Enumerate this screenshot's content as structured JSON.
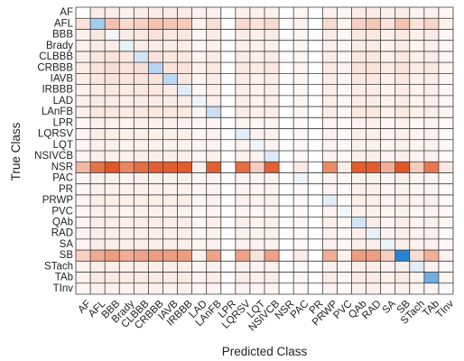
{
  "chart_data": {
    "type": "heatmap",
    "title": "",
    "xlabel": "Predicted Class",
    "ylabel": "True Class",
    "classes": [
      "AF",
      "AFL",
      "BBB",
      "Brady",
      "CLBBB",
      "CRBBB",
      "IAVB",
      "IRBBB",
      "LAD",
      "LAnFB",
      "LPR",
      "LQRSV",
      "LQT",
      "NSIVCB",
      "NSR",
      "PAC",
      "PR",
      "PRWP",
      "PVC",
      "QAb",
      "RAD",
      "SA",
      "SB",
      "STach",
      "TAb",
      "TInv"
    ],
    "colormap": {
      "negative_color": "#e0501e",
      "positive_color": "#1f7fd1",
      "neutral_color": "#ffffff",
      "range": [
        -0.75,
        0.75
      ]
    },
    "grid": true,
    "grid_color": "#3a3a3a",
    "rows": [
      {
        "true_class": "AF",
        "values": [
          0,
          -0.08,
          -0.08,
          -0.06,
          -0.08,
          -0.08,
          -0.08,
          -0.08,
          -0.06,
          -0.06,
          0,
          -0.06,
          -0.06,
          -0.06,
          0,
          -0.04,
          0,
          -0.06,
          -0.04,
          -0.08,
          -0.08,
          -0.06,
          -0.08,
          -0.05,
          -0.06,
          -0.04
        ]
      },
      {
        "true_class": "AFL",
        "values": [
          -0.12,
          0.3,
          -0.26,
          -0.16,
          -0.2,
          -0.26,
          -0.24,
          -0.22,
          -0.06,
          -0.14,
          0,
          -0.16,
          -0.12,
          -0.16,
          0,
          -0.06,
          0,
          -0.16,
          -0.05,
          -0.2,
          -0.24,
          -0.12,
          -0.26,
          -0.12,
          -0.18,
          -0.06
        ]
      },
      {
        "true_class": "BBB",
        "values": [
          -0.06,
          -0.1,
          0.05,
          -0.08,
          -0.1,
          -0.12,
          -0.1,
          -0.1,
          -0.04,
          -0.08,
          0,
          -0.08,
          -0.06,
          -0.08,
          0,
          -0.04,
          0,
          -0.08,
          -0.04,
          -0.1,
          -0.1,
          -0.06,
          -0.1,
          -0.06,
          -0.08,
          -0.04
        ]
      },
      {
        "true_class": "Brady",
        "values": [
          -0.06,
          -0.08,
          -0.08,
          0.08,
          -0.08,
          -0.08,
          -0.08,
          -0.08,
          -0.04,
          -0.06,
          0,
          -0.06,
          -0.06,
          -0.06,
          0,
          -0.04,
          0,
          -0.06,
          -0.04,
          -0.08,
          -0.08,
          -0.05,
          -0.08,
          -0.05,
          -0.06,
          -0.04
        ]
      },
      {
        "true_class": "CLBBB",
        "values": [
          -0.07,
          -0.1,
          -0.12,
          -0.1,
          0.15,
          -0.12,
          -0.1,
          -0.1,
          -0.05,
          -0.08,
          0,
          -0.08,
          -0.06,
          -0.08,
          0,
          -0.04,
          0,
          -0.08,
          -0.04,
          -0.1,
          -0.1,
          -0.06,
          -0.1,
          -0.06,
          -0.08,
          -0.04
        ]
      },
      {
        "true_class": "CRBBB",
        "values": [
          -0.08,
          -0.12,
          -0.14,
          -0.12,
          -0.14,
          0.25,
          -0.12,
          -0.12,
          -0.06,
          -0.1,
          0,
          -0.1,
          -0.08,
          -0.1,
          0,
          -0.05,
          0,
          -0.1,
          -0.05,
          -0.12,
          -0.12,
          -0.08,
          -0.12,
          -0.08,
          -0.1,
          -0.05
        ]
      },
      {
        "true_class": "IAVB",
        "values": [
          -0.07,
          -0.1,
          -0.12,
          -0.1,
          -0.12,
          -0.12,
          0.22,
          -0.1,
          -0.05,
          -0.08,
          0,
          -0.08,
          -0.06,
          -0.08,
          0,
          -0.04,
          0,
          -0.08,
          -0.04,
          -0.1,
          -0.1,
          -0.06,
          -0.1,
          -0.06,
          -0.08,
          -0.04
        ]
      },
      {
        "true_class": "IRBBB",
        "values": [
          -0.06,
          -0.08,
          -0.1,
          -0.08,
          -0.1,
          -0.1,
          -0.08,
          0.1,
          -0.04,
          -0.07,
          0,
          -0.07,
          -0.05,
          -0.07,
          0,
          -0.04,
          0,
          -0.07,
          -0.04,
          -0.08,
          -0.08,
          -0.05,
          -0.08,
          -0.05,
          -0.07,
          -0.04
        ]
      },
      {
        "true_class": "LAD",
        "values": [
          -0.06,
          -0.08,
          -0.08,
          -0.07,
          -0.08,
          -0.08,
          -0.08,
          -0.08,
          0.06,
          -0.07,
          0,
          -0.07,
          -0.05,
          -0.07,
          0,
          -0.04,
          0,
          -0.07,
          -0.04,
          -0.08,
          -0.08,
          -0.05,
          -0.08,
          -0.05,
          -0.07,
          -0.04
        ]
      },
      {
        "true_class": "LAnFB",
        "values": [
          -0.07,
          -0.1,
          -0.1,
          -0.08,
          -0.1,
          -0.1,
          -0.1,
          -0.1,
          -0.05,
          0.18,
          0,
          -0.08,
          -0.06,
          -0.08,
          0,
          -0.04,
          0,
          -0.08,
          -0.04,
          -0.1,
          -0.1,
          -0.06,
          -0.1,
          -0.06,
          -0.08,
          -0.04
        ]
      },
      {
        "true_class": "LPR",
        "values": [
          -0.04,
          -0.06,
          -0.06,
          -0.05,
          -0.06,
          -0.06,
          -0.06,
          -0.06,
          -0.04,
          -0.05,
          0,
          -0.05,
          -0.04,
          -0.05,
          0,
          -0.03,
          0,
          -0.05,
          -0.03,
          -0.06,
          -0.06,
          -0.04,
          -0.06,
          -0.04,
          -0.05,
          -0.03
        ]
      },
      {
        "true_class": "LQRSV",
        "values": [
          -0.05,
          -0.07,
          -0.07,
          -0.06,
          -0.07,
          -0.07,
          -0.07,
          -0.07,
          -0.04,
          -0.06,
          0,
          0.1,
          -0.05,
          -0.06,
          0,
          -0.03,
          0,
          -0.06,
          -0.03,
          -0.07,
          -0.07,
          -0.05,
          -0.07,
          -0.05,
          -0.06,
          -0.03
        ]
      },
      {
        "true_class": "LQT",
        "values": [
          -0.04,
          -0.06,
          -0.06,
          -0.05,
          -0.06,
          -0.06,
          -0.06,
          -0.06,
          -0.04,
          -0.05,
          0,
          -0.05,
          0.05,
          -0.05,
          0,
          -0.03,
          0,
          -0.05,
          -0.03,
          -0.06,
          -0.06,
          -0.04,
          -0.06,
          -0.04,
          -0.05,
          -0.03
        ]
      },
      {
        "true_class": "NSIVCB",
        "values": [
          -0.05,
          -0.07,
          -0.07,
          -0.06,
          -0.07,
          -0.07,
          -0.07,
          -0.07,
          -0.04,
          -0.06,
          0,
          -0.06,
          -0.05,
          0.12,
          0,
          -0.03,
          0,
          -0.06,
          -0.03,
          -0.07,
          -0.07,
          -0.05,
          -0.07,
          -0.05,
          -0.06,
          -0.03
        ]
      },
      {
        "true_class": "NSR",
        "values": [
          -0.3,
          -0.6,
          -0.72,
          -0.52,
          -0.62,
          -0.68,
          -0.7,
          -0.7,
          -0.06,
          -0.68,
          0,
          -0.62,
          -0.22,
          -0.68,
          0,
          -0.1,
          0,
          -0.5,
          -0.08,
          -0.7,
          -0.7,
          -0.35,
          -0.72,
          -0.22,
          -0.58,
          -0.1
        ]
      },
      {
        "true_class": "PAC",
        "values": [
          -0.04,
          -0.06,
          -0.06,
          -0.05,
          -0.06,
          -0.06,
          -0.06,
          -0.06,
          -0.04,
          -0.05,
          0,
          -0.05,
          -0.04,
          -0.05,
          0,
          0.06,
          0,
          -0.05,
          -0.03,
          -0.06,
          -0.06,
          -0.04,
          -0.06,
          -0.04,
          -0.05,
          -0.03
        ]
      },
      {
        "true_class": "PR",
        "values": [
          -0.04,
          -0.06,
          -0.06,
          -0.05,
          -0.06,
          -0.06,
          -0.06,
          -0.06,
          -0.04,
          -0.05,
          0,
          -0.05,
          -0.04,
          -0.05,
          0,
          -0.03,
          0,
          -0.05,
          -0.03,
          -0.06,
          -0.06,
          -0.04,
          -0.06,
          -0.04,
          -0.05,
          -0.03
        ]
      },
      {
        "true_class": "PRWP",
        "values": [
          -0.05,
          -0.07,
          -0.07,
          -0.06,
          -0.07,
          -0.07,
          -0.07,
          -0.07,
          -0.04,
          -0.06,
          0,
          -0.06,
          -0.05,
          -0.06,
          0,
          -0.03,
          0,
          0.1,
          -0.03,
          -0.07,
          -0.07,
          -0.05,
          -0.07,
          -0.05,
          -0.06,
          -0.03
        ]
      },
      {
        "true_class": "PVC",
        "values": [
          -0.04,
          -0.06,
          -0.06,
          -0.05,
          -0.06,
          -0.06,
          -0.06,
          -0.06,
          -0.04,
          -0.05,
          0,
          -0.05,
          -0.04,
          -0.05,
          0,
          -0.03,
          0,
          -0.05,
          0.04,
          -0.06,
          -0.06,
          -0.04,
          -0.06,
          -0.04,
          -0.05,
          -0.03
        ]
      },
      {
        "true_class": "QAb",
        "values": [
          -0.05,
          -0.08,
          -0.08,
          -0.07,
          -0.08,
          -0.08,
          -0.08,
          -0.08,
          -0.04,
          -0.07,
          0,
          -0.07,
          -0.05,
          -0.07,
          0,
          -0.04,
          0,
          -0.07,
          -0.04,
          0.15,
          -0.08,
          -0.05,
          -0.08,
          -0.05,
          -0.07,
          -0.04
        ]
      },
      {
        "true_class": "RAD",
        "values": [
          -0.05,
          -0.07,
          -0.07,
          -0.06,
          -0.07,
          -0.07,
          -0.07,
          -0.07,
          -0.04,
          -0.06,
          0,
          -0.06,
          -0.05,
          -0.06,
          0,
          -0.03,
          0,
          -0.06,
          -0.03,
          -0.07,
          0.08,
          -0.05,
          -0.07,
          -0.05,
          -0.06,
          -0.03
        ]
      },
      {
        "true_class": "SA",
        "values": [
          -0.05,
          -0.07,
          -0.07,
          -0.06,
          -0.07,
          -0.07,
          -0.07,
          -0.07,
          -0.04,
          -0.06,
          0,
          -0.06,
          -0.05,
          -0.06,
          0,
          -0.03,
          0,
          -0.06,
          -0.03,
          -0.07,
          -0.07,
          0.06,
          -0.07,
          -0.05,
          -0.06,
          -0.03
        ]
      },
      {
        "true_class": "SB",
        "values": [
          -0.2,
          -0.36,
          -0.42,
          -0.35,
          -0.4,
          -0.42,
          -0.42,
          -0.42,
          -0.05,
          -0.4,
          0,
          -0.4,
          -0.12,
          -0.4,
          0,
          -0.08,
          0,
          -0.35,
          -0.06,
          -0.42,
          -0.42,
          -0.2,
          0.72,
          -0.15,
          -0.34,
          -0.06
        ]
      },
      {
        "true_class": "STach",
        "values": [
          -0.05,
          -0.07,
          -0.07,
          -0.06,
          -0.07,
          -0.07,
          -0.07,
          -0.07,
          -0.04,
          -0.06,
          0,
          -0.06,
          -0.05,
          -0.06,
          0,
          -0.03,
          0,
          -0.06,
          -0.03,
          -0.07,
          -0.07,
          -0.05,
          -0.07,
          0.1,
          -0.06,
          -0.03
        ]
      },
      {
        "true_class": "TAb",
        "values": [
          -0.06,
          -0.09,
          -0.09,
          -0.08,
          -0.09,
          -0.09,
          -0.09,
          -0.09,
          -0.05,
          -0.08,
          0,
          -0.08,
          -0.06,
          -0.08,
          0,
          -0.04,
          0,
          -0.08,
          -0.04,
          -0.09,
          -0.09,
          -0.06,
          -0.09,
          -0.06,
          0.48,
          -0.04
        ]
      },
      {
        "true_class": "TInv",
        "values": [
          -0.04,
          -0.06,
          -0.06,
          -0.05,
          -0.06,
          -0.06,
          -0.06,
          -0.06,
          -0.04,
          -0.05,
          0,
          -0.05,
          -0.04,
          -0.05,
          0,
          -0.03,
          0,
          -0.05,
          -0.03,
          -0.06,
          -0.06,
          -0.04,
          -0.06,
          -0.04,
          -0.05,
          0.03
        ]
      }
    ]
  }
}
